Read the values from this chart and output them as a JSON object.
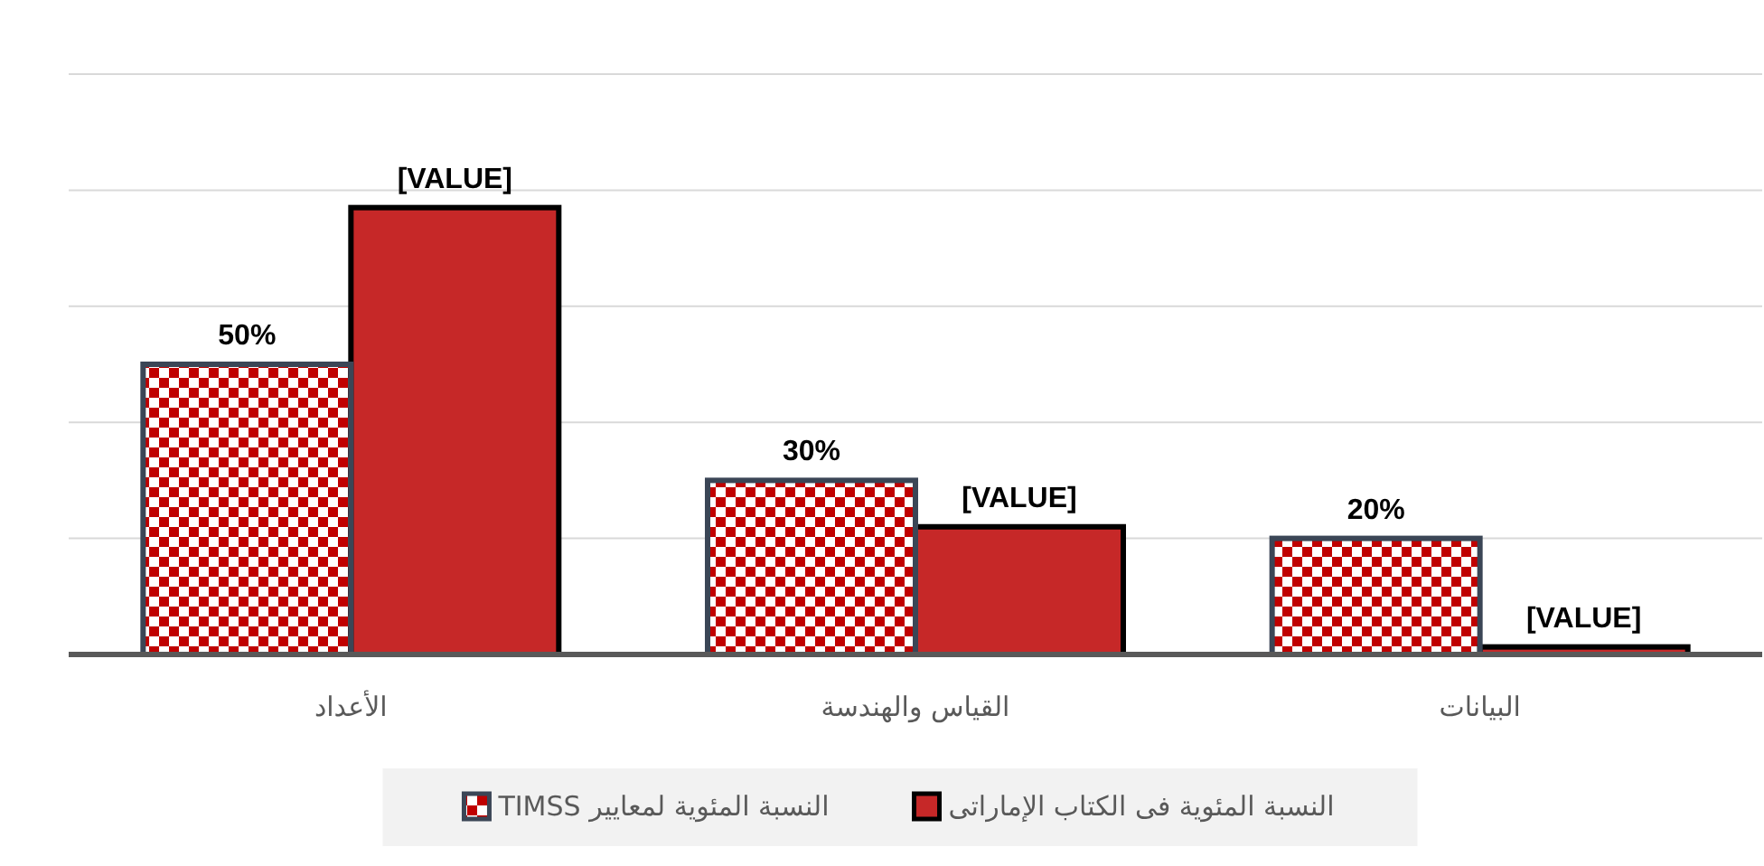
{
  "chart_data": {
    "type": "bar",
    "categories": [
      "الأعداد",
      "القياس والهندسة",
      "البيانات"
    ],
    "series": [
      {
        "name": "النسبة المئوية لمعايير TIMSS",
        "color": "#c00000",
        "values": [
          50,
          30,
          20
        ],
        "value_labels": [
          "50%",
          "30%",
          "20%"
        ]
      },
      {
        "name": "النسبة المئوية فى الكتاب الإماراتى",
        "color": "#c62828",
        "values": [
          77,
          22,
          1.3
        ],
        "value_labels": [
          "[VALUE]",
          "[VALUE]",
          "[VALUE]"
        ]
      }
    ],
    "ylim": [
      0,
      100
    ],
    "yticks": [
      {
        "value": 0,
        "label": null
      },
      {
        "value": 20,
        "label": null
      },
      {
        "value": 40,
        "label": null
      },
      {
        "value": 60,
        "label": null
      },
      {
        "value": 80,
        "label": null
      },
      {
        "value": 100,
        "label": null
      }
    ],
    "grid": "y",
    "legend": "bottom",
    "tick_labels": "x"
  }
}
